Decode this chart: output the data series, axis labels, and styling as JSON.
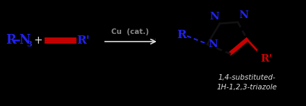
{
  "bg_color": "#000000",
  "blue": "#2222ee",
  "red": "#cc0000",
  "white": "#e0e0e0",
  "grey": "#888888",
  "label_bottom1": "1,4-substituted-",
  "label_bottom2": "1H-1,2,3-triazole",
  "catalyst": "Cu  (cat.)",
  "figsize": [
    4.4,
    1.53
  ],
  "dpi": 100
}
